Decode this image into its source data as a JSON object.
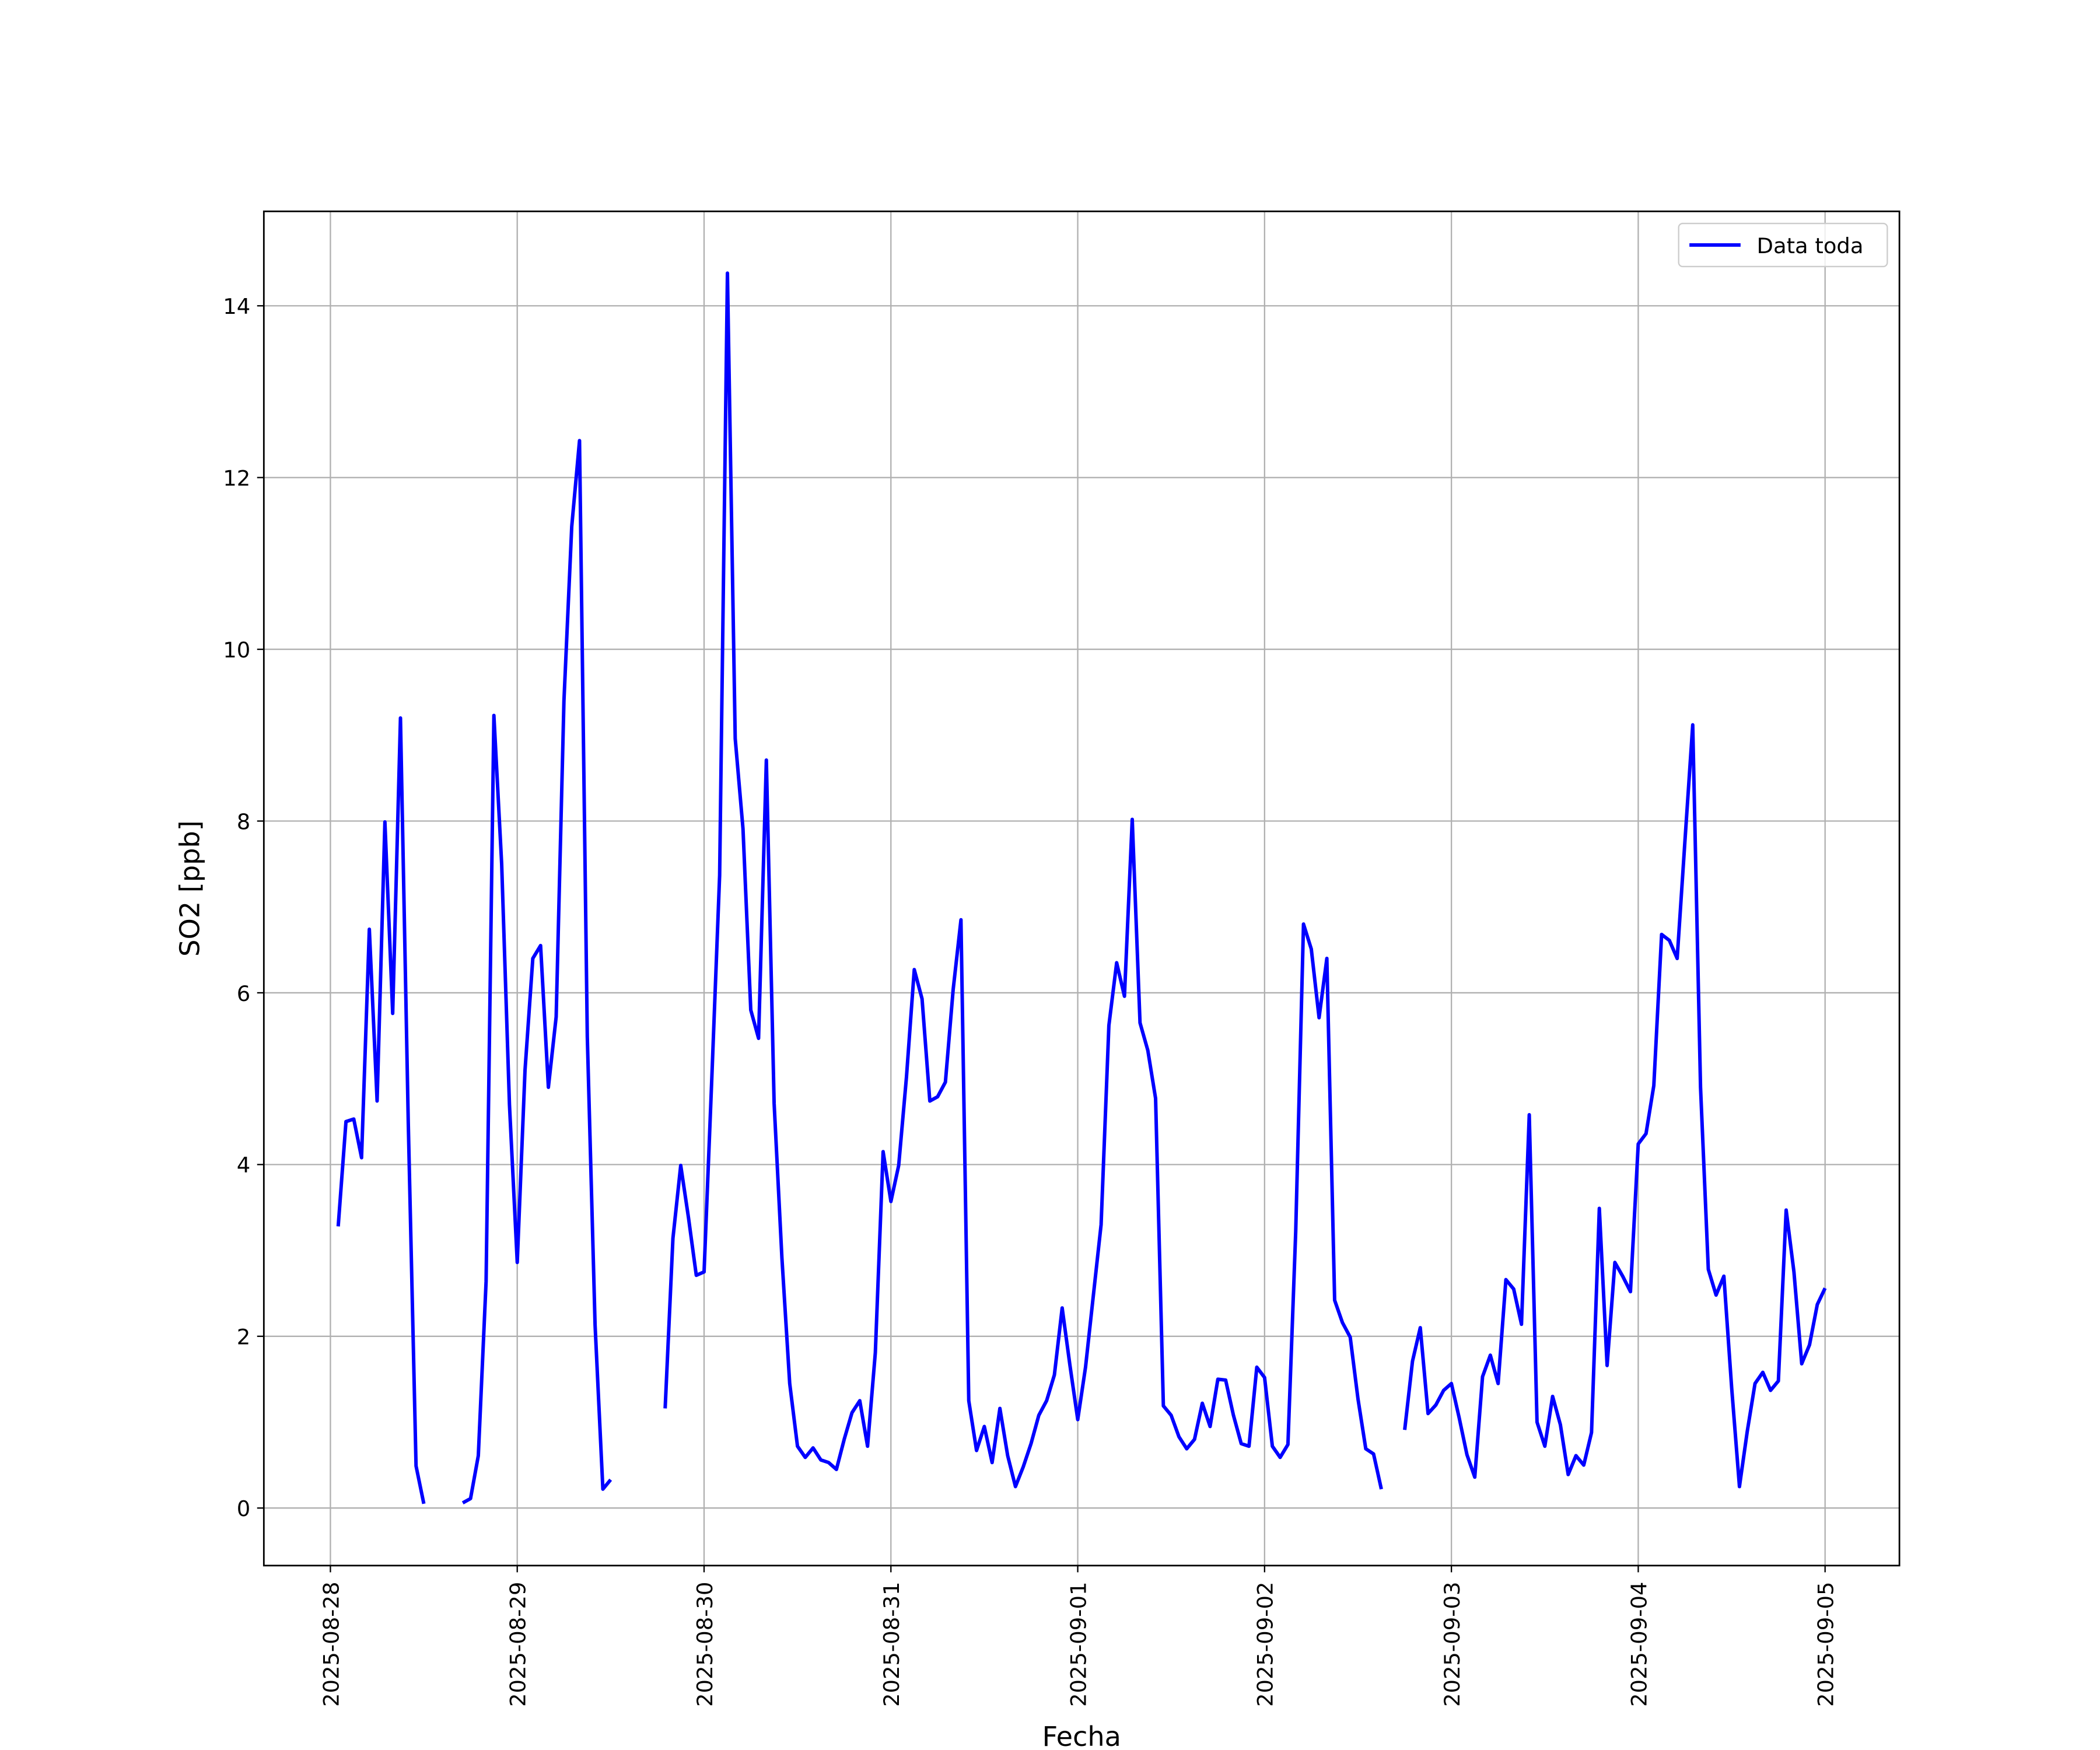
{
  "chart_data": {
    "type": "line",
    "xlabel": "Fecha",
    "ylabel": "SO2 [ppb]",
    "x": [
      "2025-08-28 01:00",
      "2025-08-28 02:00",
      "2025-08-28 03:00",
      "2025-08-28 04:00",
      "2025-08-28 05:00",
      "2025-08-28 06:00",
      "2025-08-28 07:00",
      "2025-08-28 08:00",
      "2025-08-28 09:00",
      "2025-08-28 10:00",
      "2025-08-28 11:00",
      "2025-08-28 12:00",
      "2025-08-28 13:00",
      "2025-08-28 14:00",
      "2025-08-28 15:00",
      "2025-08-28 16:00",
      "2025-08-28 17:00",
      "2025-08-28 18:00",
      "2025-08-28 19:00",
      "2025-08-28 20:00",
      "2025-08-28 21:00",
      "2025-08-28 22:00",
      "2025-08-28 23:00",
      "2025-08-29 00:00",
      "2025-08-29 01:00",
      "2025-08-29 02:00",
      "2025-08-29 03:00",
      "2025-08-29 04:00",
      "2025-08-29 05:00",
      "2025-08-29 06:00",
      "2025-08-29 07:00",
      "2025-08-29 08:00",
      "2025-08-29 09:00",
      "2025-08-29 10:00",
      "2025-08-29 11:00",
      "2025-08-29 12:00",
      "2025-08-29 13:00",
      "2025-08-29 14:00",
      "2025-08-29 15:00",
      "2025-08-29 16:00",
      "2025-08-29 17:00",
      "2025-08-29 18:00",
      "2025-08-29 19:00",
      "2025-08-29 20:00",
      "2025-08-29 21:00",
      "2025-08-29 22:00",
      "2025-08-29 23:00",
      "2025-08-30 00:00",
      "2025-08-30 01:00",
      "2025-08-30 02:00",
      "2025-08-30 03:00",
      "2025-08-30 04:00",
      "2025-08-30 05:00",
      "2025-08-30 06:00",
      "2025-08-30 07:00",
      "2025-08-30 08:00",
      "2025-08-30 09:00",
      "2025-08-30 10:00",
      "2025-08-30 11:00",
      "2025-08-30 12:00",
      "2025-08-30 13:00",
      "2025-08-30 14:00",
      "2025-08-30 15:00",
      "2025-08-30 16:00",
      "2025-08-30 17:00",
      "2025-08-30 18:00",
      "2025-08-30 19:00",
      "2025-08-30 20:00",
      "2025-08-30 21:00",
      "2025-08-30 22:00",
      "2025-08-30 23:00",
      "2025-08-31 00:00",
      "2025-08-31 01:00",
      "2025-08-31 02:00",
      "2025-08-31 03:00",
      "2025-08-31 04:00",
      "2025-08-31 05:00",
      "2025-08-31 06:00",
      "2025-08-31 07:00",
      "2025-08-31 08:00",
      "2025-08-31 09:00",
      "2025-08-31 10:00",
      "2025-08-31 11:00",
      "2025-08-31 12:00",
      "2025-08-31 13:00",
      "2025-08-31 14:00",
      "2025-08-31 15:00",
      "2025-08-31 16:00",
      "2025-08-31 17:00",
      "2025-08-31 18:00",
      "2025-08-31 19:00",
      "2025-08-31 20:00",
      "2025-08-31 21:00",
      "2025-08-31 22:00",
      "2025-08-31 23:00",
      "2025-09-01 00:00",
      "2025-09-01 01:00",
      "2025-09-01 02:00",
      "2025-09-01 03:00",
      "2025-09-01 04:00",
      "2025-09-01 05:00",
      "2025-09-01 06:00",
      "2025-09-01 07:00",
      "2025-09-01 08:00",
      "2025-09-01 09:00",
      "2025-09-01 10:00",
      "2025-09-01 11:00",
      "2025-09-01 12:00",
      "2025-09-01 13:00",
      "2025-09-01 14:00",
      "2025-09-01 15:00",
      "2025-09-01 16:00",
      "2025-09-01 17:00",
      "2025-09-01 18:00",
      "2025-09-01 19:00",
      "2025-09-01 20:00",
      "2025-09-01 21:00",
      "2025-09-01 22:00",
      "2025-09-01 23:00",
      "2025-09-02 00:00",
      "2025-09-02 01:00",
      "2025-09-02 02:00",
      "2025-09-02 03:00",
      "2025-09-02 04:00",
      "2025-09-02 05:00",
      "2025-09-02 06:00",
      "2025-09-02 07:00",
      "2025-09-02 08:00",
      "2025-09-02 09:00",
      "2025-09-02 10:00",
      "2025-09-02 11:00",
      "2025-09-02 12:00",
      "2025-09-02 13:00",
      "2025-09-02 14:00",
      "2025-09-02 15:00",
      "2025-09-02 16:00",
      "2025-09-02 17:00",
      "2025-09-02 18:00",
      "2025-09-02 19:00",
      "2025-09-02 20:00",
      "2025-09-02 21:00",
      "2025-09-02 22:00",
      "2025-09-02 23:00",
      "2025-09-03 00:00",
      "2025-09-03 01:00",
      "2025-09-03 02:00",
      "2025-09-03 03:00",
      "2025-09-03 04:00",
      "2025-09-03 05:00",
      "2025-09-03 06:00",
      "2025-09-03 07:00",
      "2025-09-03 08:00",
      "2025-09-03 09:00",
      "2025-09-03 10:00",
      "2025-09-03 11:00",
      "2025-09-03 12:00",
      "2025-09-03 13:00",
      "2025-09-03 14:00",
      "2025-09-03 15:00",
      "2025-09-03 16:00",
      "2025-09-03 17:00",
      "2025-09-03 18:00",
      "2025-09-03 19:00",
      "2025-09-03 20:00",
      "2025-09-03 21:00",
      "2025-09-03 22:00",
      "2025-09-03 23:00",
      "2025-09-04 00:00",
      "2025-09-04 01:00",
      "2025-09-04 02:00",
      "2025-09-04 03:00",
      "2025-09-04 04:00",
      "2025-09-04 05:00",
      "2025-09-04 06:00",
      "2025-09-04 07:00",
      "2025-09-04 08:00",
      "2025-09-04 09:00",
      "2025-09-04 10:00",
      "2025-09-04 11:00",
      "2025-09-04 12:00",
      "2025-09-04 13:00",
      "2025-09-04 14:00",
      "2025-09-04 15:00",
      "2025-09-04 16:00",
      "2025-09-04 17:00",
      "2025-09-04 18:00",
      "2025-09-04 19:00",
      "2025-09-04 20:00",
      "2025-09-04 21:00",
      "2025-09-04 22:00",
      "2025-09-04 23:00",
      "2025-09-05 00:00"
    ],
    "series": [
      {
        "name": "Data toda",
        "color": "#0000ff",
        "values": [
          3.28,
          4.5,
          4.53,
          4.08,
          6.74,
          4.74,
          7.99,
          5.76,
          9.2,
          4.5,
          0.49,
          0.05,
          null,
          null,
          null,
          null,
          0.06,
          0.11,
          0.61,
          2.64,
          9.23,
          7.5,
          4.7,
          2.86,
          5.1,
          6.4,
          6.55,
          4.9,
          5.72,
          9.4,
          11.43,
          12.43,
          5.49,
          2.13,
          0.22,
          0.33,
          null,
          null,
          null,
          null,
          null,
          null,
          1.16,
          3.14,
          3.99,
          3.38,
          2.71,
          2.75,
          5.02,
          7.37,
          14.38,
          8.96,
          7.91,
          5.8,
          5.47,
          8.71,
          4.71,
          2.91,
          1.45,
          0.72,
          0.59,
          0.7,
          0.56,
          0.53,
          0.45,
          0.8,
          1.11,
          1.25,
          0.72,
          1.81,
          4.15,
          3.57,
          3.99,
          5.02,
          6.27,
          5.93,
          4.74,
          4.79,
          4.96,
          6.04,
          6.85,
          1.25,
          0.67,
          0.95,
          0.53,
          1.16,
          0.61,
          0.25,
          0.48,
          0.75,
          1.08,
          1.25,
          1.55,
          2.33,
          1.66,
          1.03,
          1.64,
          2.47,
          3.3,
          5.62,
          6.35,
          5.96,
          8.02,
          5.65,
          5.33,
          4.77,
          1.19,
          1.08,
          0.83,
          0.69,
          0.8,
          1.22,
          0.95,
          1.5,
          1.49,
          1.08,
          0.75,
          0.72,
          1.64,
          1.52,
          0.72,
          0.59,
          0.74,
          3.22,
          6.8,
          6.51,
          5.71,
          6.4,
          2.42,
          2.16,
          1.99,
          1.27,
          0.69,
          0.63,
          0.22,
          null,
          null,
          0.91,
          1.71,
          2.1,
          1.1,
          1.2,
          1.37,
          1.45,
          1.05,
          0.62,
          0.36,
          1.53,
          1.78,
          1.45,
          2.66,
          2.55,
          2.14,
          4.58,
          1.0,
          0.72,
          1.3,
          0.97,
          0.39,
          0.61,
          0.5,
          0.88,
          3.49,
          1.66,
          2.86,
          2.7,
          2.52,
          4.24,
          4.36,
          4.92,
          6.68,
          6.61,
          6.4,
          7.77,
          9.12,
          4.9,
          2.78,
          2.48,
          2.7,
          1.4,
          0.25,
          0.89,
          1.45,
          1.58,
          1.37,
          1.48,
          3.47,
          2.75,
          1.68,
          1.9,
          2.37,
          2.56
        ]
      }
    ],
    "xlim": [
      "2025-08-27 15:27",
      "2025-09-05 09:33"
    ],
    "xticks": [
      "2025-08-28",
      "2025-08-29",
      "2025-08-30",
      "2025-08-31",
      "2025-09-01",
      "2025-09-02",
      "2025-09-03",
      "2025-09-04",
      "2025-09-05"
    ],
    "ylim": [
      -0.67,
      15.1
    ],
    "yticks": [
      0,
      2,
      4,
      6,
      8,
      10,
      12,
      14
    ],
    "grid": true,
    "legend": "upper right"
  }
}
